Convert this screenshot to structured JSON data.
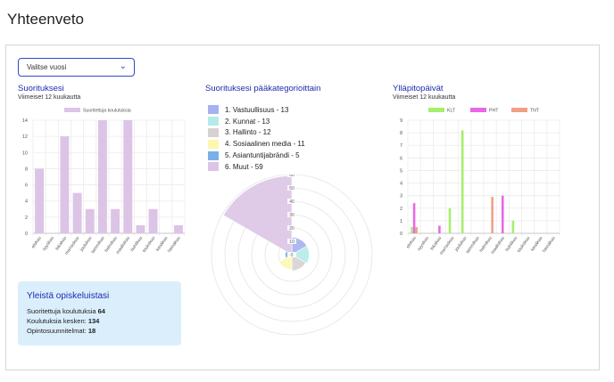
{
  "page": {
    "title": "Yhteenveto"
  },
  "year_select": {
    "value": "Valitse vuosi"
  },
  "completions": {
    "title": "Suorituksesi",
    "subtitle": "Viimeiset 12 kuukautta"
  },
  "categories": {
    "title": "Suorituksesi pääkategorioittain",
    "items": [
      {
        "label": "1. Vastuullisuus - 13",
        "value": 13,
        "color": "#a6b1f0"
      },
      {
        "label": "2. Kunnat - 13",
        "value": 13,
        "color": "#b4ebea"
      },
      {
        "label": "3. Hallinto - 12",
        "value": 12,
        "color": "#d8d1d2"
      },
      {
        "label": "4. Sosiaalinen media - 11",
        "value": 11,
        "color": "#fdf7b0"
      },
      {
        "label": "5. Asiantuntijabrändi - 5",
        "value": 5,
        "color": "#7ab0e6"
      },
      {
        "label": "6. Muut - 59",
        "value": 59,
        "color": "#dcc4e6"
      }
    ]
  },
  "maintenance": {
    "title": "Ylläpitopäivät",
    "subtitle": "Viimeiset 12 kuukautta"
  },
  "stats": {
    "title": "Yleistä opiskeluistasi",
    "completed_label": "Suoritettuja koulutuksia",
    "completed_value": "64",
    "in_progress_label": "Koulutuksia kesken:",
    "in_progress_value": "134",
    "plans_label": "Opintosuunnitelmat:",
    "plans_value": "18"
  },
  "chart_data": [
    {
      "type": "bar",
      "title": "Suorituksesi",
      "legend": [
        "Suoritettuja koulutuksia"
      ],
      "legend_position": "top",
      "categories": [
        "elokuu",
        "syyskuu",
        "lokakuu",
        "marraskuu",
        "joulukuu",
        "tammikuu",
        "helmikuu",
        "maaliskuu",
        "huhtikuu",
        "toukokuu",
        "kesäkuu",
        "heinäkuu"
      ],
      "series": [
        {
          "name": "Suoritettuja koulutuksia",
          "color": "#dcc4e6",
          "values": [
            8,
            0,
            12,
            5,
            3,
            14,
            3,
            14,
            1,
            3,
            0,
            1
          ]
        }
      ],
      "ylim": [
        0,
        14
      ],
      "yticks": [
        0,
        2,
        4,
        6,
        8,
        10,
        12,
        14
      ],
      "grid": true
    },
    {
      "type": "polar-area",
      "title": "Suorituksesi pääkategorioittain",
      "categories": [
        "1. Vastuullisuus - 13",
        "2. Kunnat - 13",
        "3. Hallinto - 12",
        "4. Sosiaalinen media - 11",
        "5. Asiantuntijabrändi - 5",
        "6. Muut - 59"
      ],
      "values": [
        13,
        13,
        12,
        11,
        5,
        59
      ],
      "rlim": [
        0,
        60
      ],
      "rticks": [
        0,
        10,
        20,
        30,
        40,
        50,
        60
      ]
    },
    {
      "type": "bar",
      "title": "Ylläpitopäivät",
      "legend_position": "top",
      "categories": [
        "elokuu",
        "syyskuu",
        "lokakuu",
        "marraskuu",
        "joulukuu",
        "tammikuu",
        "helmikuu",
        "maaliskuu",
        "huhtikuu",
        "toukokuu",
        "kesäkuu",
        "heinäkuu"
      ],
      "series": [
        {
          "name": "KLT",
          "color": "#a5ef6c",
          "values": [
            0.5,
            0,
            0,
            2,
            8.2,
            0,
            0,
            0,
            1,
            0,
            0,
            0
          ]
        },
        {
          "name": "PHT",
          "color": "#ea66e6",
          "values": [
            2.4,
            0,
            0.6,
            0,
            0,
            0,
            0,
            3,
            0,
            0,
            0,
            0
          ]
        },
        {
          "name": "TNT",
          "color": "#f19f87",
          "values": [
            0.5,
            0,
            0,
            0,
            0,
            0,
            2.9,
            0,
            0,
            0,
            0,
            0
          ]
        }
      ],
      "ylim": [
        0,
        9
      ],
      "yticks": [
        0,
        1,
        2,
        3,
        4,
        5,
        6,
        7,
        8,
        9
      ],
      "grid": true
    }
  ]
}
